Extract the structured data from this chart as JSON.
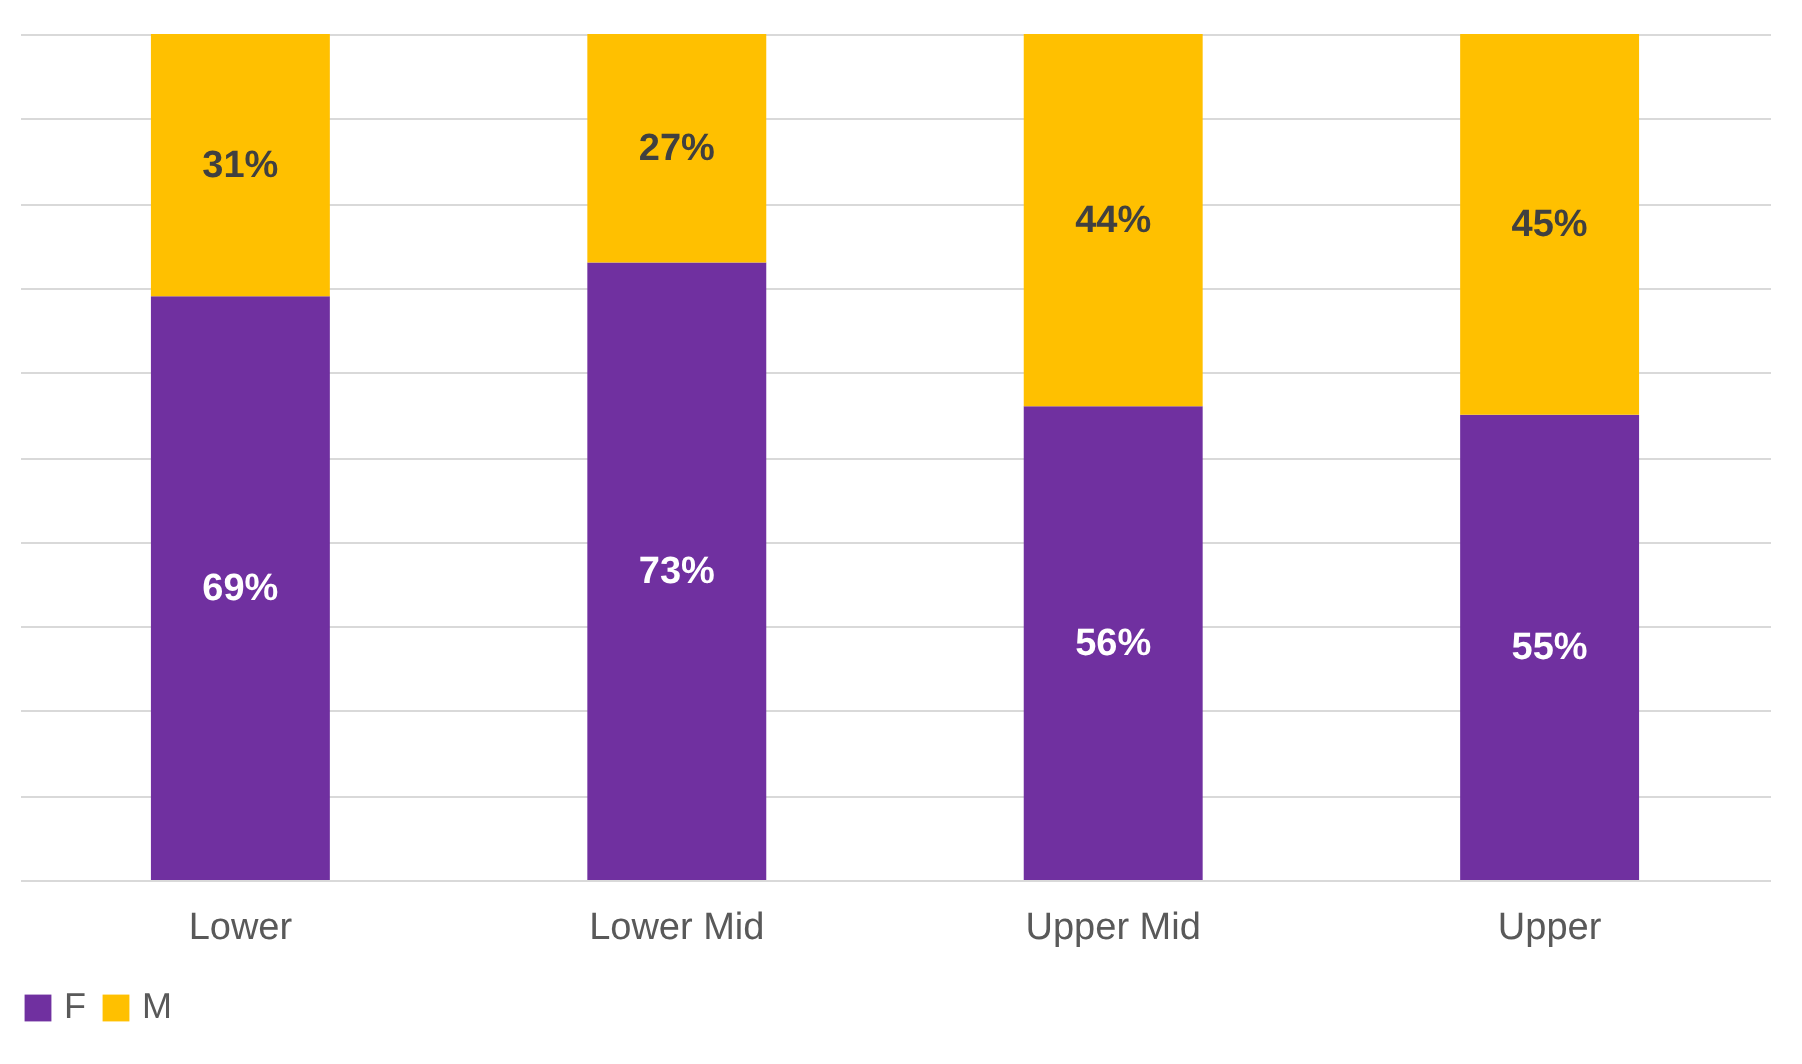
{
  "chart_data": {
    "type": "bar",
    "stacked": true,
    "categories": [
      "Lower",
      "Lower Mid",
      "Upper Mid",
      "Upper"
    ],
    "series": [
      {
        "name": "F",
        "color": "#7030a0",
        "values": [
          69,
          73,
          56,
          55
        ],
        "value_labels": [
          "69%",
          "73%",
          "56%",
          "55%"
        ]
      },
      {
        "name": "M",
        "color": "#ffc000",
        "values": [
          31,
          27,
          44,
          45
        ],
        "value_labels": [
          "31%",
          "27%",
          "44%",
          "45%"
        ]
      }
    ],
    "ylim": [
      0,
      100
    ],
    "yticks": [
      {
        "value": 0,
        "label": null
      },
      {
        "value": 10,
        "label": null
      },
      {
        "value": 20,
        "label": null
      },
      {
        "value": 30,
        "label": null
      },
      {
        "value": 40,
        "label": null
      },
      {
        "value": 50,
        "label": null
      },
      {
        "value": 60,
        "label": null
      },
      {
        "value": 70,
        "label": null
      },
      {
        "value": 80,
        "label": null
      },
      {
        "value": 90,
        "label": null
      },
      {
        "value": 100,
        "label": null
      }
    ],
    "grid": "y",
    "tick_labels": "x",
    "legend": "bottom"
  }
}
